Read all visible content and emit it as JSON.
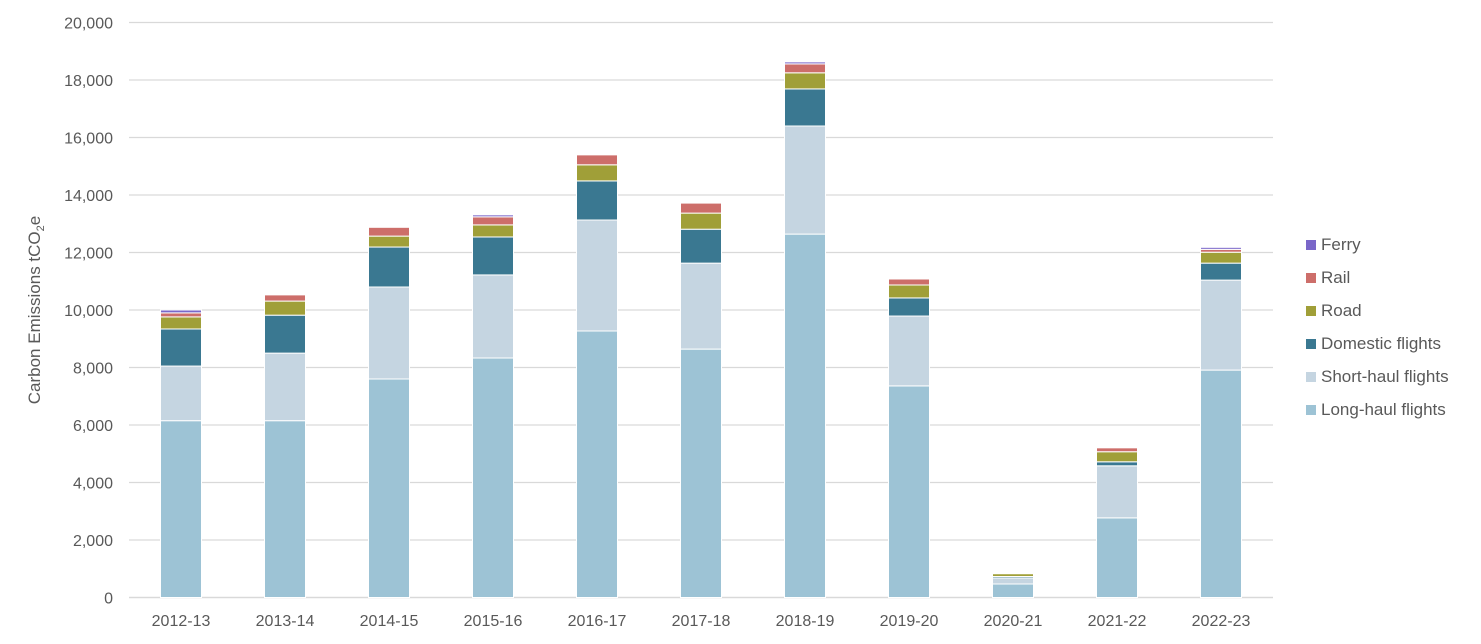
{
  "chart_data": {
    "type": "bar",
    "stacked": true,
    "title": "",
    "xlabel": "",
    "ylabel": "Carbon Emissions tCO2e",
    "ylabel_parts": {
      "pre": "Carbon Emissions tCO",
      "sub": "2",
      "post": "e"
    },
    "ylim": [
      0,
      20000
    ],
    "yticks": [
      0,
      2000,
      4000,
      6000,
      8000,
      10000,
      12000,
      14000,
      16000,
      18000,
      20000
    ],
    "ytick_labels": [
      "0",
      "2,000",
      "4,000",
      "6,000",
      "8,000",
      "10,000",
      "12,000",
      "14,000",
      "16,000",
      "18,000",
      "20,000"
    ],
    "grid": true,
    "legend_position": "right",
    "categories": [
      "2012-13",
      "2013-14",
      "2014-15",
      "2015-16",
      "2016-17",
      "2017-18",
      "2018-19",
      "2019-20",
      "2020-21",
      "2021-22",
      "2022-23"
    ],
    "series": [
      {
        "name": "Long-haul flights",
        "color": "#9dc3d5",
        "values": [
          6150,
          6150,
          7600,
          8330,
          9270,
          8640,
          12640,
          7360,
          470,
          2770,
          7910
        ]
      },
      {
        "name": "Short-haul flights",
        "color": "#c5d5e1",
        "values": [
          1900,
          2350,
          3200,
          2890,
          3860,
          2990,
          3760,
          2430,
          210,
          1810,
          3130
        ]
      },
      {
        "name": "Domestic flights",
        "color": "#3a7891",
        "values": [
          1290,
          1320,
          1390,
          1320,
          1360,
          1180,
          1290,
          630,
          50,
          140,
          590
        ]
      },
      {
        "name": "Road",
        "color": "#a09f38",
        "values": [
          420,
          490,
          380,
          420,
          560,
          560,
          560,
          450,
          100,
          350,
          380
        ]
      },
      {
        "name": "Rail",
        "color": "#cd6e6a",
        "values": [
          140,
          220,
          310,
          280,
          350,
          350,
          310,
          210,
          20,
          140,
          100
        ]
      },
      {
        "name": "Ferry",
        "color": "#7a67c9",
        "values": [
          100,
          30,
          10,
          70,
          30,
          10,
          70,
          10,
          5,
          20,
          70
        ]
      }
    ]
  },
  "legend": {
    "items": [
      {
        "label": "Ferry",
        "color": "#7a67c9"
      },
      {
        "label": "Rail",
        "color": "#cd6e6a"
      },
      {
        "label": "Road",
        "color": "#a09f38"
      },
      {
        "label": "Domestic flights",
        "color": "#3a7891"
      },
      {
        "label": "Short-haul flights",
        "color": "#c5d5e1"
      },
      {
        "label": "Long-haul flights",
        "color": "#9dc3d5"
      }
    ]
  },
  "style": {
    "grid_color": "#d9d9d9",
    "axis_color": "#d9d9d9",
    "text_color": "#595959"
  }
}
